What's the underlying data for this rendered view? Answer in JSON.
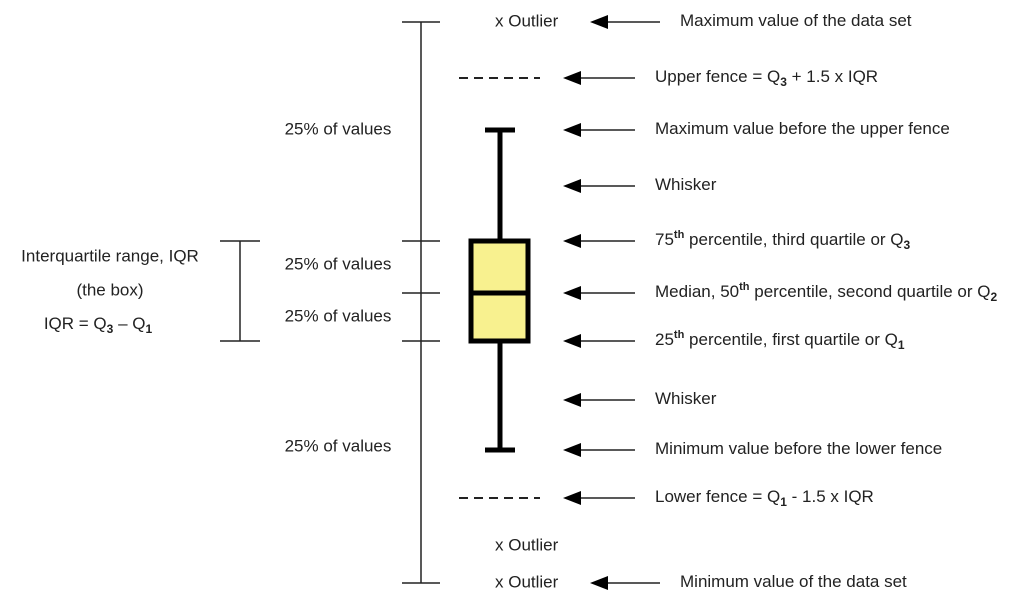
{
  "outliers": [
    "x Outlier",
    "x Outlier",
    "x Outlier"
  ],
  "quarter_labels": [
    "25% of values",
    "25% of values",
    "25% of values",
    "25% of values"
  ],
  "iqr": {
    "title": "Interquartile range, IQR",
    "subtitle": "(the box)",
    "formula": [
      {
        "text": "IQR = Q"
      },
      {
        "sub": "3"
      },
      {
        "text": " – Q"
      },
      {
        "sub": "1"
      }
    ]
  },
  "annotations": [
    {
      "parts": [
        {
          "text": "Maximum value of the data set"
        }
      ]
    },
    {
      "parts": [
        {
          "text": "Upper fence = Q"
        },
        {
          "sub": "3"
        },
        {
          "text": " + 1.5 x IQR"
        }
      ]
    },
    {
      "parts": [
        {
          "text": "Maximum value before the upper fence"
        }
      ]
    },
    {
      "parts": [
        {
          "text": "Whisker"
        }
      ]
    },
    {
      "parts": [
        {
          "text": "75"
        },
        {
          "sup": "th"
        },
        {
          "text": " percentile, third quartile or Q"
        },
        {
          "sub": "3"
        }
      ]
    },
    {
      "parts": [
        {
          "text": "Median, 50"
        },
        {
          "sup": "th"
        },
        {
          "text": " percentile, second quartile or Q"
        },
        {
          "sub": "2"
        }
      ]
    },
    {
      "parts": [
        {
          "text": "25"
        },
        {
          "sup": "th"
        },
        {
          "text": " percentile, first quartile or Q"
        },
        {
          "sub": "1"
        }
      ]
    },
    {
      "parts": [
        {
          "text": "Whisker"
        }
      ]
    },
    {
      "parts": [
        {
          "text": "Minimum value before the lower fence"
        }
      ]
    },
    {
      "parts": [
        {
          "text": "Lower fence = Q"
        },
        {
          "sub": "1"
        },
        {
          "text": " - 1.5 x IQR"
        }
      ]
    },
    {
      "parts": [
        {
          "text": "Minimum value of the data set"
        }
      ]
    }
  ]
}
